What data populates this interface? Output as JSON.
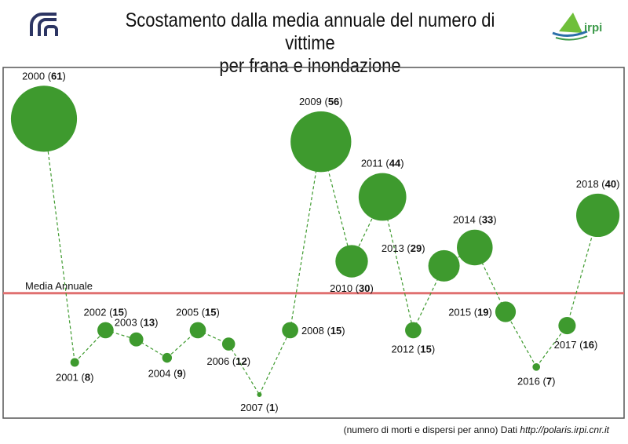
{
  "title_line1": "Scostamento dalla media annuale del numero di vittime",
  "title_line2": "per frana e inondazione",
  "footer_text": "(numero di morti e dispersi per anno) Dati",
  "footer_link": "http://polaris.irpi.cnr.it",
  "logos": {
    "left": "CNR",
    "right": "irpi"
  },
  "colors": {
    "bubble": "#3e9a2e",
    "mean_line": "#e07070",
    "connector": "#3e9a2e"
  },
  "chart_data": {
    "type": "scatter",
    "encoding": "bubble",
    "x": [
      2000,
      2001,
      2002,
      2003,
      2004,
      2005,
      2006,
      2007,
      2008,
      2009,
      2010,
      2011,
      2012,
      2013,
      2014,
      2015,
      2016,
      2017,
      2018
    ],
    "values": [
      61,
      8,
      15,
      13,
      9,
      15,
      12,
      1,
      15,
      56,
      30,
      44,
      15,
      29,
      33,
      19,
      7,
      16,
      40
    ],
    "mean_label": "Media Annuale",
    "mean_value": 23.05,
    "grid": false,
    "legend": "none"
  }
}
